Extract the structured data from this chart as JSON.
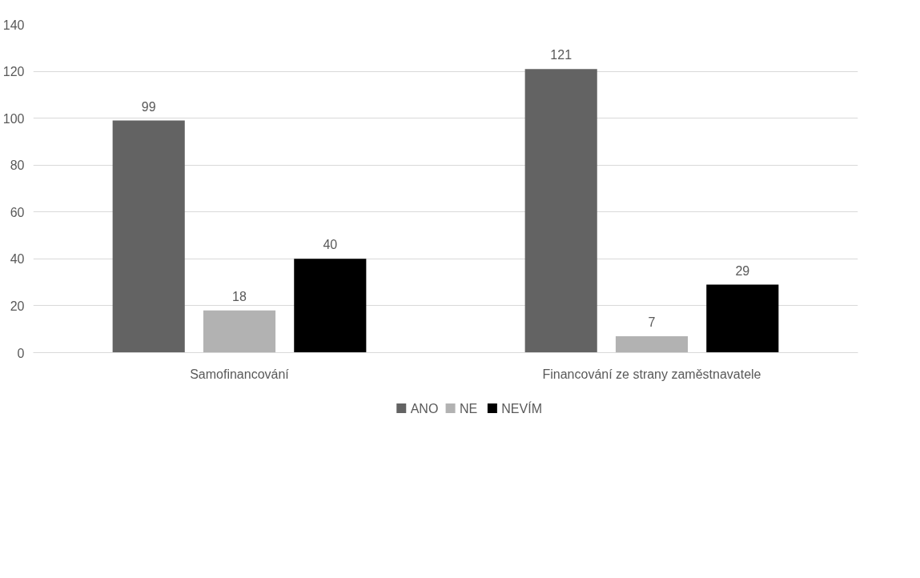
{
  "chart_data": {
    "type": "bar",
    "categories": [
      "Samofinancování",
      "Financování ze strany zaměstnavatele"
    ],
    "series": [
      {
        "name": "ANO",
        "color": "#636363",
        "values": [
          99,
          121
        ]
      },
      {
        "name": "NE",
        "color": "#b2b2b2",
        "values": [
          18,
          7
        ]
      },
      {
        "name": "NEVÍM",
        "color": "#000000",
        "values": [
          40,
          29
        ]
      }
    ],
    "ylim": [
      0,
      140
    ],
    "yticks": [
      0,
      20,
      40,
      60,
      80,
      100,
      120,
      140
    ],
    "grid": "y",
    "legend": "bottom",
    "data_labels": true
  }
}
